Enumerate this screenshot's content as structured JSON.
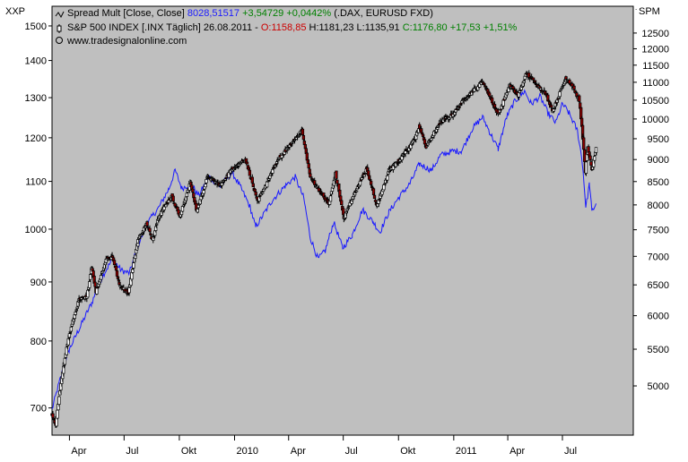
{
  "chart_data": {
    "type": "line",
    "title": "",
    "units": {
      "left": "XXP",
      "right": "SPM"
    },
    "legend": {
      "placement": "top-left",
      "series_line": {
        "label": "Spread Mult [Close, Close]",
        "value": "8028,51517",
        "change": "+3,54729",
        "change_pct": "+0,0442%",
        "detail": "(.DAX, EURUSD FXD)"
      },
      "candle_line": {
        "label": "S&P 500 INDEX [.INX  Täglich] 26.08.2011",
        "open": "O:1158,85",
        "high": "H:1181,23",
        "low": "L:1135,91",
        "close": "C:1176,80",
        "change": "+17,53 +1,51%"
      },
      "source": "www.tradesignalonline.com"
    },
    "y_left": {
      "scale": "log",
      "range": [
        663,
        1560
      ],
      "ticks": [
        700,
        800,
        900,
        1000,
        1100,
        1200,
        1300,
        1400,
        1500
      ]
    },
    "y_right": {
      "scale": "log",
      "range": [
        4400,
        13400
      ],
      "ticks": [
        5000,
        5500,
        6000,
        6500,
        7000,
        7500,
        8000,
        8500,
        9000,
        9500,
        10000,
        10500,
        11000,
        11500,
        12000,
        12500
      ]
    },
    "x": {
      "start": "2009-03-03",
      "end": "2011-10-27",
      "ticks": [
        {
          "date": "2009-04-01",
          "label": "Apr"
        },
        {
          "date": "2009-07-01",
          "label": "Jul"
        },
        {
          "date": "2009-10-01",
          "label": "Okt"
        },
        {
          "date": "2010-01-01",
          "label": "2010"
        },
        {
          "date": "2010-04-01",
          "label": "Apr"
        },
        {
          "date": "2010-07-01",
          "label": "Jul"
        },
        {
          "date": "2010-10-01",
          "label": "Okt"
        },
        {
          "date": "2011-01-01",
          "label": "2011"
        },
        {
          "date": "2011-04-01",
          "label": "Apr"
        },
        {
          "date": "2011-07-01",
          "label": "Jul"
        }
      ]
    },
    "series": [
      {
        "name": "Spread Mult [Close, Close]",
        "axis": "right",
        "color": "#1a1aff",
        "points": [
          [
            "2009-03-03",
            4700
          ],
          [
            "2009-03-17",
            5100
          ],
          [
            "2009-04-01",
            5500
          ],
          [
            "2009-04-20",
            5850
          ],
          [
            "2009-05-08",
            6200
          ],
          [
            "2009-05-26",
            6650
          ],
          [
            "2009-06-12",
            6950
          ],
          [
            "2009-06-26",
            6750
          ],
          [
            "2009-07-10",
            6700
          ],
          [
            "2009-07-24",
            7200
          ],
          [
            "2009-08-10",
            7650
          ],
          [
            "2009-08-28",
            7950
          ],
          [
            "2009-09-14",
            8350
          ],
          [
            "2009-09-24",
            8750
          ],
          [
            "2009-10-05",
            8350
          ],
          [
            "2009-10-20",
            8450
          ],
          [
            "2009-11-02",
            8200
          ],
          [
            "2009-11-20",
            8600
          ],
          [
            "2009-12-08",
            8400
          ],
          [
            "2009-12-28",
            8700
          ],
          [
            "2010-01-12",
            8350
          ],
          [
            "2010-01-27",
            7950
          ],
          [
            "2010-02-05",
            7550
          ],
          [
            "2010-02-18",
            7800
          ],
          [
            "2010-03-05",
            8100
          ],
          [
            "2010-03-26",
            8400
          ],
          [
            "2010-04-12",
            8600
          ],
          [
            "2010-04-26",
            8150
          ],
          [
            "2010-05-07",
            7350
          ],
          [
            "2010-05-20",
            6950
          ],
          [
            "2010-06-01",
            7100
          ],
          [
            "2010-06-15",
            7650
          ],
          [
            "2010-06-30",
            7150
          ],
          [
            "2010-07-16",
            7400
          ],
          [
            "2010-08-02",
            7900
          ],
          [
            "2010-08-20",
            7650
          ],
          [
            "2010-08-31",
            7450
          ],
          [
            "2010-09-15",
            7850
          ],
          [
            "2010-10-01",
            8150
          ],
          [
            "2010-10-20",
            8450
          ],
          [
            "2010-11-05",
            8900
          ],
          [
            "2010-11-25",
            8750
          ],
          [
            "2010-12-10",
            9100
          ],
          [
            "2010-12-30",
            9200
          ],
          [
            "2011-01-14",
            9200
          ],
          [
            "2011-02-01",
            9750
          ],
          [
            "2011-02-18",
            10050
          ],
          [
            "2011-03-04",
            9600
          ],
          [
            "2011-03-16",
            9250
          ],
          [
            "2011-03-30",
            10050
          ],
          [
            "2011-04-12",
            10450
          ],
          [
            "2011-04-29",
            10750
          ],
          [
            "2011-05-10",
            10400
          ],
          [
            "2011-05-25",
            10600
          ],
          [
            "2011-06-07",
            10150
          ],
          [
            "2011-06-20",
            9900
          ],
          [
            "2011-07-01",
            10400
          ],
          [
            "2011-07-12",
            10150
          ],
          [
            "2011-07-26",
            9700
          ],
          [
            "2011-08-03",
            8950
          ],
          [
            "2011-08-09",
            7950
          ],
          [
            "2011-08-15",
            8450
          ],
          [
            "2011-08-19",
            7850
          ],
          [
            "2011-08-26",
            8029
          ]
        ]
      },
      {
        "name": "S&P 500 INDEX",
        "axis": "left",
        "type": "candlestick",
        "up_color": "#ffffff",
        "down_color": "#8b0000",
        "outline_color": "#000000",
        "closes": [
          [
            "2009-03-03",
            690
          ],
          [
            "2009-03-09",
            677
          ],
          [
            "2009-03-23",
            768
          ],
          [
            "2009-04-01",
            811
          ],
          [
            "2009-04-17",
            869
          ],
          [
            "2009-04-30",
            873
          ],
          [
            "2009-05-08",
            929
          ],
          [
            "2009-05-15",
            882
          ],
          [
            "2009-06-01",
            942
          ],
          [
            "2009-06-12",
            946
          ],
          [
            "2009-06-23",
            895
          ],
          [
            "2009-07-08",
            880
          ],
          [
            "2009-07-24",
            979
          ],
          [
            "2009-08-07",
            1010
          ],
          [
            "2009-08-17",
            980
          ],
          [
            "2009-08-28",
            1028
          ],
          [
            "2009-09-18",
            1068
          ],
          [
            "2009-10-02",
            1025
          ],
          [
            "2009-10-19",
            1098
          ],
          [
            "2009-10-30",
            1036
          ],
          [
            "2009-11-17",
            1110
          ],
          [
            "2009-12-08",
            1092
          ],
          [
            "2009-12-28",
            1128
          ],
          [
            "2010-01-19",
            1150
          ],
          [
            "2010-02-08",
            1056
          ],
          [
            "2010-02-26",
            1104
          ],
          [
            "2010-03-15",
            1150
          ],
          [
            "2010-04-01",
            1178
          ],
          [
            "2010-04-23",
            1217
          ],
          [
            "2010-05-07",
            1110
          ],
          [
            "2010-05-25",
            1074
          ],
          [
            "2010-06-07",
            1050
          ],
          [
            "2010-06-18",
            1117
          ],
          [
            "2010-07-02",
            1022
          ],
          [
            "2010-07-16",
            1064
          ],
          [
            "2010-08-09",
            1127
          ],
          [
            "2010-08-26",
            1047
          ],
          [
            "2010-09-15",
            1125
          ],
          [
            "2010-10-01",
            1146
          ],
          [
            "2010-10-20",
            1178
          ],
          [
            "2010-11-05",
            1225
          ],
          [
            "2010-11-16",
            1178
          ],
          [
            "2010-12-10",
            1240
          ],
          [
            "2010-12-31",
            1258
          ],
          [
            "2011-01-18",
            1295
          ],
          [
            "2011-02-18",
            1343
          ],
          [
            "2011-03-16",
            1256
          ],
          [
            "2011-04-04",
            1332
          ],
          [
            "2011-04-18",
            1305
          ],
          [
            "2011-05-02",
            1364
          ],
          [
            "2011-05-20",
            1333
          ],
          [
            "2011-06-01",
            1315
          ],
          [
            "2011-06-15",
            1266
          ],
          [
            "2011-07-07",
            1353
          ],
          [
            "2011-07-19",
            1326
          ],
          [
            "2011-07-29",
            1292
          ],
          [
            "2011-08-04",
            1200
          ],
          [
            "2011-08-08",
            1119
          ],
          [
            "2011-08-12",
            1179
          ],
          [
            "2011-08-19",
            1124
          ],
          [
            "2011-08-26",
            1177
          ]
        ]
      }
    ]
  }
}
